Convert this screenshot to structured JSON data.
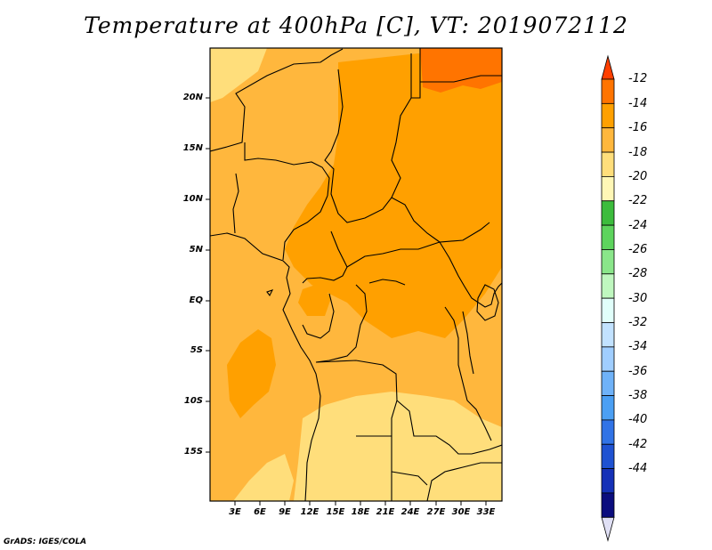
{
  "title": "Temperature at 400hPa [C], VT: 2019072112",
  "credit": "GrADS: IGES/COLA",
  "y_axis_labels": [
    "20N",
    "15N",
    "10N",
    "5N",
    "EQ",
    "5S",
    "10S",
    "15S"
  ],
  "x_axis_labels": [
    "3E",
    "6E",
    "9E",
    "12E",
    "15E",
    "18E",
    "21E",
    "24E",
    "27E",
    "30E",
    "33E"
  ],
  "colorbar": {
    "labels": [
      "-12",
      "-14",
      "-16",
      "-18",
      "-20",
      "-22",
      "-24",
      "-26",
      "-28",
      "-30",
      "-32",
      "-34",
      "-36",
      "-38",
      "-40",
      "-42",
      "-44"
    ],
    "colors": [
      "#ff3f00",
      "#ff7400",
      "#ffa000",
      "#ffb73d",
      "#ffde7b",
      "#fff7b6",
      "#3cbc3d",
      "#5dd45d",
      "#8ae68a",
      "#bff7bf",
      "#e1fffa",
      "#c2e2ff",
      "#a0ceff",
      "#6fb2f8",
      "#4b9ff3",
      "#3173e6",
      "#1f52d2",
      "#1531b7",
      "#0b0d7e",
      "#e0e0f5"
    ]
  },
  "field_colors": {
    "-18 to -16": "#ffde7b",
    "-16 to -14": "#ffb73d",
    "-14 to -12": "#ffa000",
    "-12 to -10": "#ff7400"
  }
}
